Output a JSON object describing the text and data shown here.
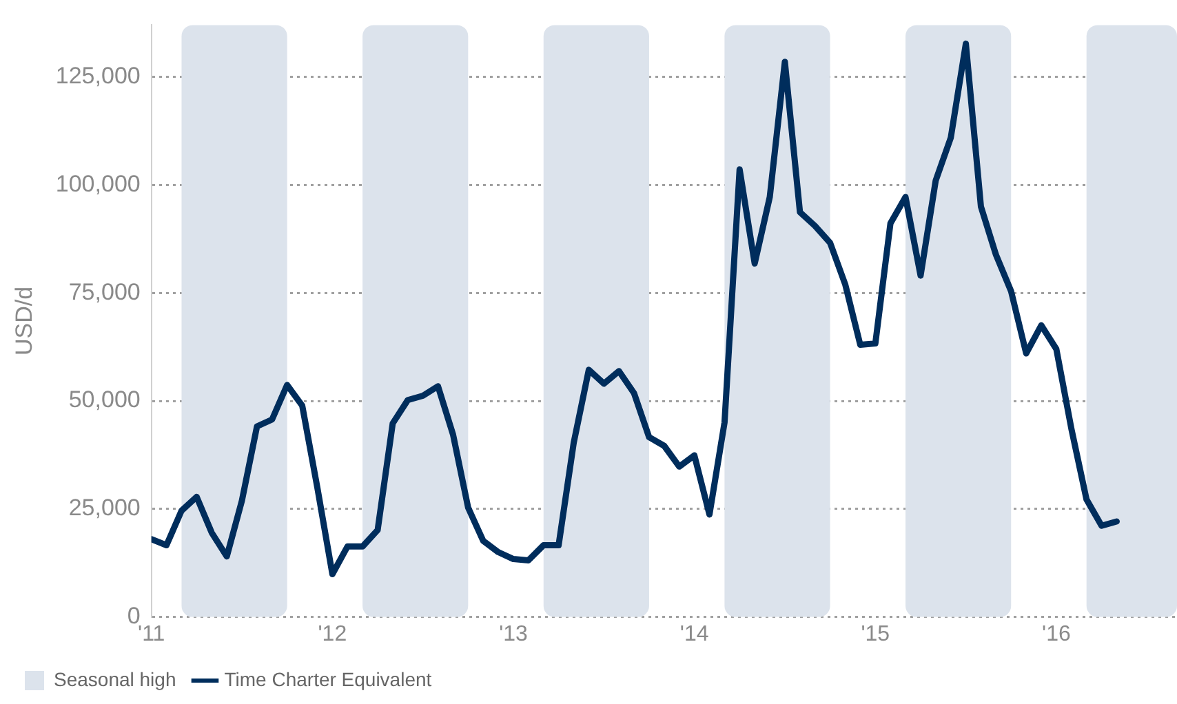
{
  "chart_data": {
    "type": "line",
    "ylabel": "USD/d",
    "x": [
      "2011-01",
      "2011-02",
      "2011-03",
      "2011-04",
      "2011-05",
      "2011-06",
      "2011-07",
      "2011-08",
      "2011-09",
      "2011-10",
      "2011-11",
      "2011-12",
      "2012-01",
      "2012-02",
      "2012-03",
      "2012-04",
      "2012-05",
      "2012-06",
      "2012-07",
      "2012-08",
      "2012-09",
      "2012-10",
      "2012-11",
      "2012-12",
      "2013-01",
      "2013-02",
      "2013-03",
      "2013-04",
      "2013-05",
      "2013-06",
      "2013-07",
      "2013-08",
      "2013-09",
      "2013-10",
      "2013-11",
      "2013-12",
      "2014-01",
      "2014-02",
      "2014-03",
      "2014-04",
      "2014-05",
      "2014-06",
      "2014-07",
      "2014-08",
      "2014-09",
      "2014-10",
      "2014-11",
      "2014-12",
      "2015-01",
      "2015-02",
      "2015-03",
      "2015-04",
      "2015-05",
      "2015-06",
      "2015-07",
      "2015-08",
      "2015-09",
      "2015-10",
      "2015-11",
      "2015-12",
      "2016-01",
      "2016-02",
      "2016-03",
      "2016-04",
      "2016-05"
    ],
    "series": [
      {
        "name": "Time Charter Equivalent",
        "color": "#002d5c",
        "values": [
          18000,
          16600,
          24600,
          27800,
          19500,
          14000,
          26900,
          44100,
          45700,
          53700,
          48900,
          30000,
          9900,
          16300,
          16300,
          20100,
          44800,
          50200,
          51200,
          53400,
          42200,
          25300,
          17600,
          15000,
          13400,
          13100,
          16600,
          16600,
          40300,
          57200,
          54000,
          56900,
          51800,
          41600,
          39600,
          34800,
          37400,
          23700,
          45000,
          103600,
          81800,
          97200,
          128500,
          93700,
          90500,
          86600,
          77000,
          63000,
          63300,
          91100,
          97200,
          79000,
          101000,
          110900,
          132700,
          95000,
          83800,
          75400,
          61000,
          67500,
          62000,
          43500,
          27200,
          21100,
          22100
        ]
      }
    ],
    "xlim": [
      "2011-01-01",
      "2016-09-01"
    ],
    "xticks": [
      {
        "value": "2011-01",
        "label": "'11"
      },
      {
        "value": "2012-01",
        "label": "'12"
      },
      {
        "value": "2013-01",
        "label": "'13"
      },
      {
        "value": "2014-01",
        "label": "'14"
      },
      {
        "value": "2015-01",
        "label": "'15"
      },
      {
        "value": "2016-01",
        "label": "'16"
      }
    ],
    "ylim": [
      0,
      137000
    ],
    "yticks": [
      {
        "value": 0,
        "label": "0"
      },
      {
        "value": 25000,
        "label": "25,000"
      },
      {
        "value": 50000,
        "label": "50,000"
      },
      {
        "value": 75000,
        "label": "75,000"
      },
      {
        "value": 100000,
        "label": "100,000"
      },
      {
        "value": 125000,
        "label": "125,000"
      }
    ],
    "bands": [
      {
        "axis": "x",
        "from": "2011-03",
        "to": "2011-10",
        "label": "Seasonal high",
        "color": "#dce3ec"
      },
      {
        "axis": "x",
        "from": "2012-03",
        "to": "2012-10",
        "color": "#dce3ec"
      },
      {
        "axis": "x",
        "from": "2013-03",
        "to": "2013-10",
        "color": "#dce3ec"
      },
      {
        "axis": "x",
        "from": "2014-03",
        "to": "2014-10",
        "color": "#dce3ec"
      },
      {
        "axis": "x",
        "from": "2015-03",
        "to": "2015-10",
        "color": "#dce3ec"
      },
      {
        "axis": "x",
        "from": "2016-03",
        "to": "2016-09-01",
        "color": "#dce3ec"
      }
    ],
    "grid": "y",
    "legend": "bottom left",
    "marker": "none",
    "line_style": "solid"
  }
}
